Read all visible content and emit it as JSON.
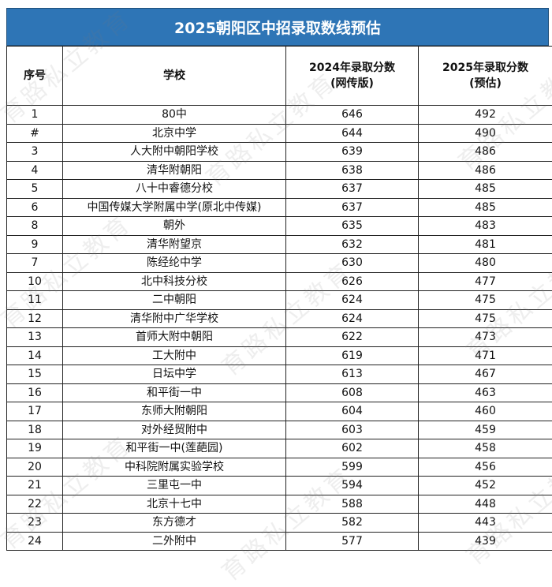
{
  "title": "2025朝阳区中招录取数线预估",
  "watermark": "育路私立教育",
  "headers": {
    "index": "序号",
    "school": "学校",
    "score_2024_line1": "2024年录取分数",
    "score_2024_line2": "(网传版)",
    "score_2025_line1": "2025年录取分数",
    "score_2025_line2": "(预估)"
  },
  "rows": [
    {
      "no": "1",
      "school": "80中",
      "s2024": "646",
      "s2025": "492"
    },
    {
      "no": "#",
      "school": "北京中学",
      "s2024": "644",
      "s2025": "490"
    },
    {
      "no": "3",
      "school": "人大附中朝阳学校",
      "s2024": "639",
      "s2025": "486"
    },
    {
      "no": "4",
      "school": "清华附朝阳",
      "s2024": "638",
      "s2025": "486"
    },
    {
      "no": "5",
      "school": "八十中睿德分校",
      "s2024": "637",
      "s2025": "485"
    },
    {
      "no": "6",
      "school": "中国传媒大学附属中学(原北中传媒)",
      "s2024": "637",
      "s2025": "485"
    },
    {
      "no": "8",
      "school": "朝外",
      "s2024": "635",
      "s2025": "483"
    },
    {
      "no": "9",
      "school": "清华附望京",
      "s2024": "632",
      "s2025": "481"
    },
    {
      "no": "7",
      "school": "陈经纶中学",
      "s2024": "630",
      "s2025": "480"
    },
    {
      "no": "10",
      "school": "北中科技分校",
      "s2024": "626",
      "s2025": "477"
    },
    {
      "no": "11",
      "school": "二中朝阳",
      "s2024": "624",
      "s2025": "475"
    },
    {
      "no": "12",
      "school": "清华附中广华学校",
      "s2024": "624",
      "s2025": "475"
    },
    {
      "no": "13",
      "school": "首师大附中朝阳",
      "s2024": "622",
      "s2025": "473"
    },
    {
      "no": "14",
      "school": "工大附中",
      "s2024": "619",
      "s2025": "471"
    },
    {
      "no": "15",
      "school": "日坛中学",
      "s2024": "613",
      "s2025": "467"
    },
    {
      "no": "16",
      "school": "和平街一中",
      "s2024": "608",
      "s2025": "463"
    },
    {
      "no": "17",
      "school": "东师大附朝阳",
      "s2024": "604",
      "s2025": "460"
    },
    {
      "no": "18",
      "school": "对外经贸附中",
      "s2024": "603",
      "s2025": "459"
    },
    {
      "no": "19",
      "school": "和平街一中(莲葩园)",
      "s2024": "602",
      "s2025": "458"
    },
    {
      "no": "20",
      "school": "中科院附属实验学校",
      "s2024": "599",
      "s2025": "456"
    },
    {
      "no": "21",
      "school": "三里屯一中",
      "s2024": "594",
      "s2025": "452"
    },
    {
      "no": "22",
      "school": "北京十七中",
      "s2024": "588",
      "s2025": "448"
    },
    {
      "no": "23",
      "school": "东方德才",
      "s2024": "582",
      "s2025": "443"
    },
    {
      "no": "24",
      "school": "二外附中",
      "s2024": "577",
      "s2025": "439"
    }
  ]
}
